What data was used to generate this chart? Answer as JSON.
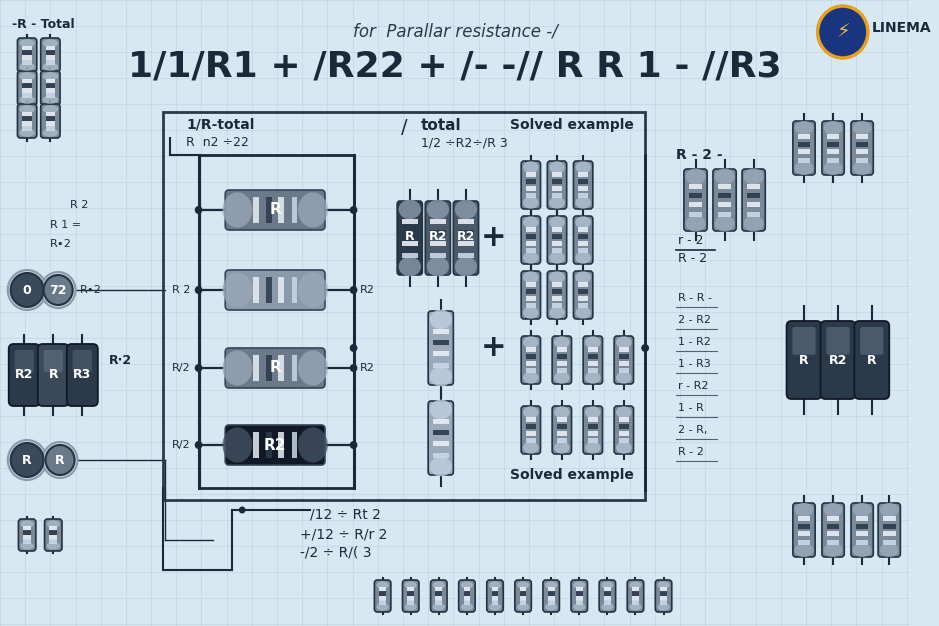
{
  "bg_color": "#d8e8f2",
  "grid_color": "#b8cede",
  "wire_color": "#1a2a3a",
  "text_dark": "#1a2a3a",
  "title1": "for  Parallar resistance -/",
  "title2": "1/1/R1 + /R22 + /- -// R R 1 - //R3",
  "label_1r_total": "1/R-total",
  "label_eq1": "R  n2 ÷22",
  "label_total": "total",
  "label_frac": "1/2 ÷R2÷/R 3",
  "label_solved_top": "Solved example",
  "label_solved_bot": "Solved example",
  "label_bottom1": "/12 ÷ Rt 2",
  "label_bottom2": "+/12 ÷ R/r 2",
  "label_bottom3": "-/2 ÷ R/( 3",
  "label_left_top": "-R - Total",
  "label_r2_left1": "R 2",
  "label_r1_eq": "R 1 =",
  "label_r_dot_2a": "R∙2",
  "label_r2_circ": "R∙2",
  "label_r2_side_a": "R 2",
  "label_r2_side_b": "R/2",
  "label_r2_side_c": "R/2",
  "label_r2_right_a": "R2",
  "label_r2_right_b": "R2",
  "label_right_top": "R - 2 -",
  "label_frac_num": "r - 2",
  "label_frac_den": "R - 2",
  "label_right_list": [
    "R - R -",
    "2 - R2",
    "1 - R2",
    "1 - R3",
    "r - R2",
    "1 - R",
    "2 - R,",
    "R - 2"
  ],
  "logo_text": "LINEMA",
  "res_h_color_1": "#6a7a8a",
  "res_h_color_2": "#8a9aaa",
  "res_h_color_3": "#6a7a8a",
  "res_h_color_4": "#111827",
  "res_v_dark": "#2a3a4a",
  "res_v_mid": "#4a5a6a",
  "res_v_light": "#7a8a9a",
  "res_v_lighter": "#9aaabb",
  "stripe_light": "#c8d8e8",
  "stripe_dark": "#2a3a4a",
  "stripe_white": "#e8eef4"
}
